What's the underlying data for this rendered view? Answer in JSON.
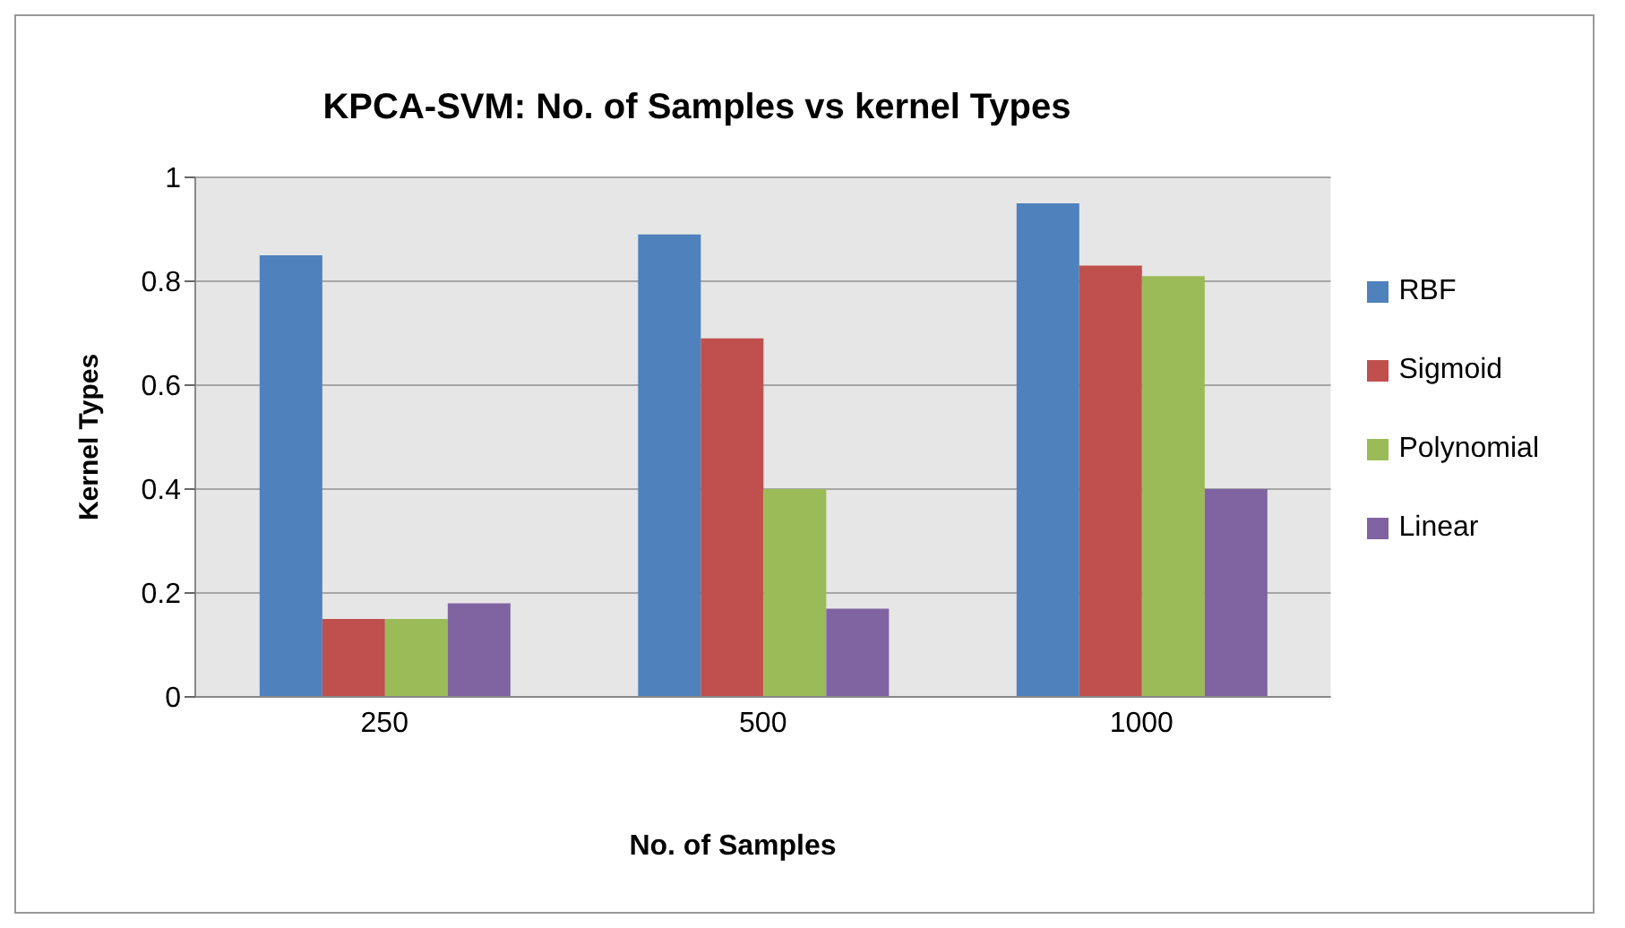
{
  "chart_data": {
    "type": "bar",
    "title": "KPCA-SVM: No. of Samples vs kernel Types",
    "xlabel": "No. of Samples",
    "ylabel": "Kernel Types",
    "categories": [
      "250",
      "500",
      "1000"
    ],
    "series": [
      {
        "name": "RBF",
        "color": "#4f81bd",
        "values": [
          0.85,
          0.89,
          0.95
        ]
      },
      {
        "name": "Sigmoid",
        "color": "#c0504d",
        "values": [
          0.15,
          0.69,
          0.83
        ]
      },
      {
        "name": "Polynomial",
        "color": "#9bbb59",
        "values": [
          0.15,
          0.4,
          0.81
        ]
      },
      {
        "name": "Linear",
        "color": "#8064a2",
        "values": [
          0.18,
          0.17,
          0.4
        ]
      }
    ],
    "ylim": [
      0,
      1
    ],
    "yticks": [
      0,
      0.2,
      0.4,
      0.6,
      0.8,
      1
    ],
    "grid": "y",
    "legend": "right"
  }
}
